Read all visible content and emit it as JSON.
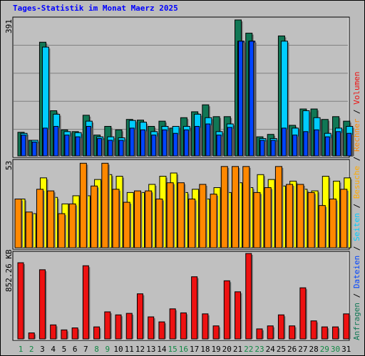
{
  "title": "Tages-Statistik im Monat Maerz 2025",
  "colors": {
    "frame_bg": "#bcbcbc",
    "plot_bg": "#c0c0c0",
    "grid": "#808080",
    "anfragen": "#117755",
    "dateien": "#00ccff",
    "seiten": "#0044ff",
    "besuche": "#ffff00",
    "rechner": "#ff8800",
    "volumen": "#ee1111",
    "weekday_label": "#000000",
    "weekend_label": "#118844"
  },
  "legend": {
    "top": [
      {
        "text": "Anfragen",
        "color": "#117755"
      },
      {
        "text": " / ",
        "color": "#000000"
      },
      {
        "text": "Dateien",
        "color": "#0044ff"
      },
      {
        "text": " / ",
        "color": "#000000"
      },
      {
        "text": "Seiten",
        "color": "#00ccff"
      },
      {
        "text": " / ",
        "color": "#000000"
      },
      {
        "text": "Besuche",
        "color": "#ffaa00"
      },
      {
        "text": " / ",
        "color": "#000000"
      },
      {
        "text": "Rechner",
        "color": "#ff8800"
      },
      {
        "text": " / ",
        "color": "#000000"
      },
      {
        "text": "Volumen",
        "color": "#ee1111"
      }
    ]
  },
  "chart_data": [
    {
      "type": "bar",
      "panel": "requests",
      "y_max_label": "391",
      "ylim": [
        0,
        391
      ],
      "grid": true,
      "categories": [
        "1",
        "2",
        "3",
        "4",
        "5",
        "6",
        "7",
        "8",
        "9",
        "10",
        "11",
        "12",
        "13",
        "14",
        "15",
        "16",
        "17",
        "18",
        "19",
        "20",
        "21",
        "22",
        "23",
        "24",
        "25",
        "26",
        "27",
        "28",
        "29",
        "30",
        "31"
      ],
      "weekend_days": [
        "1",
        "2",
        "8",
        "9",
        "15",
        "16",
        "22",
        "23",
        "29",
        "30"
      ],
      "series": [
        {
          "name": "Anfragen",
          "values": [
            68,
            45,
            327,
            130,
            75,
            70,
            117,
            60,
            85,
            75,
            105,
            103,
            85,
            100,
            80,
            110,
            127,
            147,
            113,
            113,
            391,
            353,
            55,
            62,
            345,
            88,
            135,
            135,
            105,
            113,
            100
          ]
        },
        {
          "name": "Dateien",
          "values": [
            65,
            45,
            313,
            120,
            70,
            67,
            100,
            55,
            55,
            52,
            102,
            97,
            70,
            85,
            85,
            85,
            120,
            110,
            70,
            92,
            330,
            330,
            50,
            50,
            330,
            80,
            130,
            110,
            65,
            80,
            85
          ]
        },
        {
          "name": "Seiten",
          "values": [
            60,
            40,
            80,
            85,
            60,
            55,
            85,
            50,
            45,
            45,
            80,
            75,
            60,
            75,
            65,
            75,
            85,
            92,
            60,
            82,
            330,
            330,
            45,
            45,
            80,
            60,
            70,
            75,
            55,
            70,
            65
          ]
        }
      ]
    },
    {
      "type": "bar",
      "panel": "visits",
      "y_max_label": "53",
      "ylim": [
        0,
        53
      ],
      "grid": false,
      "categories": [
        "1",
        "2",
        "3",
        "4",
        "5",
        "6",
        "7",
        "8",
        "9",
        "10",
        "11",
        "12",
        "13",
        "14",
        "15",
        "16",
        "17",
        "18",
        "19",
        "20",
        "21",
        "22",
        "23",
        "24",
        "25",
        "26",
        "27",
        "28",
        "29",
        "30",
        "31"
      ],
      "series": [
        {
          "name": "Besuche",
          "values": [
            30,
            21,
            43,
            31,
            27,
            32,
            32,
            42,
            45,
            44,
            34,
            34,
            39,
            44,
            46,
            34,
            36,
            30,
            37,
            34,
            40,
            37,
            45,
            42,
            38,
            41,
            36,
            35,
            44,
            41,
            43
          ]
        },
        {
          "name": "Rechner",
          "values": [
            30,
            22,
            36,
            35,
            21,
            27,
            52,
            38,
            52,
            36,
            28,
            35,
            35,
            30,
            40,
            40,
            30,
            39,
            33,
            50,
            50,
            50,
            34,
            37,
            50,
            39,
            39,
            34,
            26,
            30,
            36
          ]
        }
      ]
    },
    {
      "type": "bar",
      "panel": "volume",
      "y_max_label": "852.26 KB",
      "ylim": [
        0,
        852.26
      ],
      "grid": false,
      "categories": [
        "1",
        "2",
        "3",
        "4",
        "5",
        "6",
        "7",
        "8",
        "9",
        "10",
        "11",
        "12",
        "13",
        "14",
        "15",
        "16",
        "17",
        "18",
        "19",
        "20",
        "21",
        "22",
        "23",
        "24",
        "25",
        "26",
        "27",
        "28",
        "29",
        "30",
        "31"
      ],
      "series": [
        {
          "name": "Volumen",
          "values": [
            760,
            60,
            690,
            140,
            90,
            110,
            730,
            120,
            270,
            240,
            255,
            450,
            220,
            170,
            300,
            260,
            620,
            250,
            130,
            580,
            470,
            852.26,
            100,
            130,
            240,
            130,
            510,
            180,
            120,
            120,
            250
          ]
        }
      ]
    }
  ]
}
